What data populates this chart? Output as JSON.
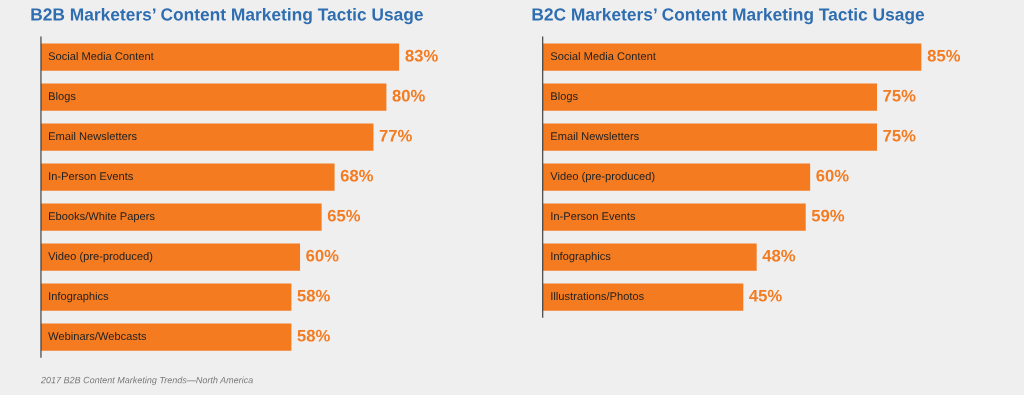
{
  "chart_data": [
    {
      "type": "bar",
      "orientation": "horizontal",
      "title": "B2B Marketers’ Content Marketing Tactic Usage",
      "categories": [
        "Social Media Content",
        "Blogs",
        "Email Newsletters",
        "In-Person Events",
        "Ebooks/White Papers",
        "Video (pre-produced)",
        "Infographics",
        "Webinars/Webcasts"
      ],
      "values": [
        83,
        80,
        77,
        68,
        65,
        60,
        58,
        58
      ],
      "value_labels": [
        "83%",
        "80%",
        "77%",
        "68%",
        "65%",
        "60%",
        "58%",
        "58%"
      ],
      "color": "#f47b20",
      "tick_labels": "y",
      "annotations": [
        "2017 B2B Content Marketing Trends—North America"
      ]
    },
    {
      "type": "bar",
      "orientation": "horizontal",
      "title": "B2C Marketers’ Content Marketing Tactic Usage",
      "categories": [
        "Social Media Content",
        "Blogs",
        "Email Newsletters",
        "Video (pre-produced)",
        "In-Person Events",
        "Infographics",
        "Illustrations/Photos"
      ],
      "values": [
        85,
        75,
        75,
        60,
        59,
        48,
        45
      ],
      "value_labels": [
        "85%",
        "75%",
        "75%",
        "60%",
        "59%",
        "48%",
        "45%"
      ],
      "color": "#f47b20",
      "tick_labels": "y"
    }
  ]
}
